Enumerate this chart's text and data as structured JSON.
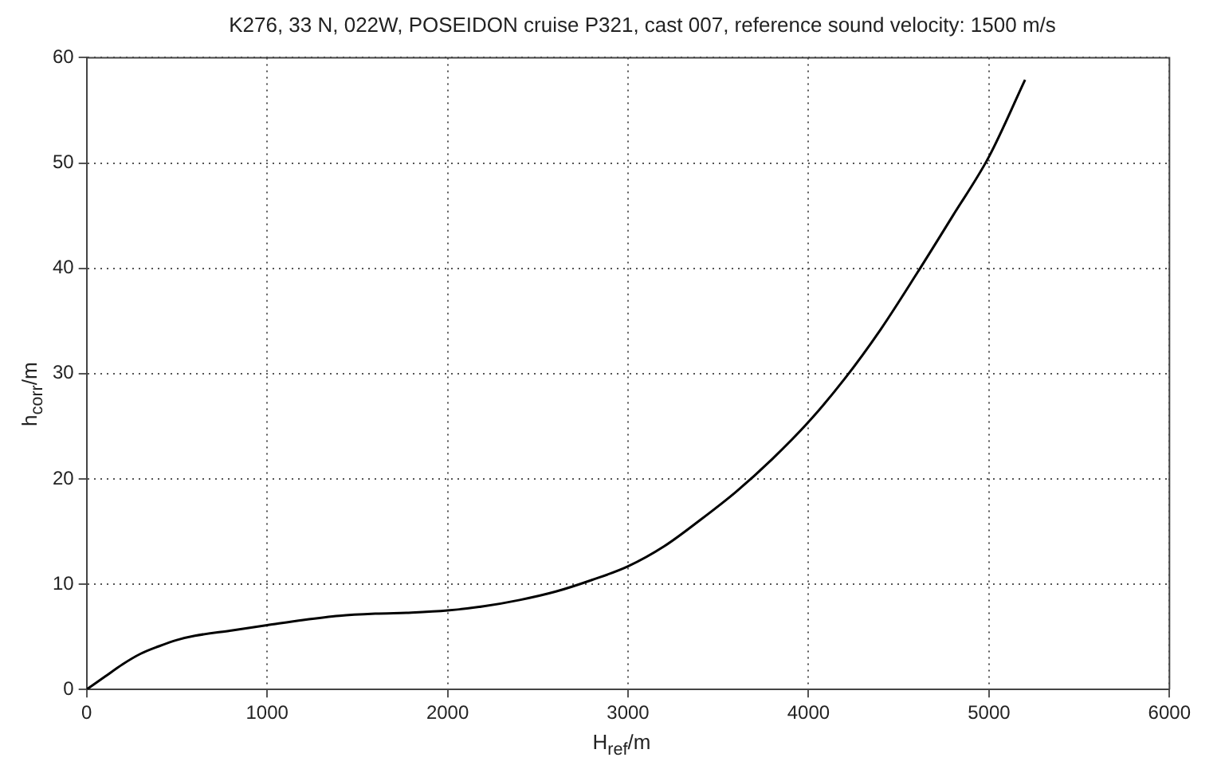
{
  "chart_data": {
    "type": "line",
    "title": "K276, 33 N, 022W, POSEIDON cruise P321, cast 007, reference sound velocity: 1500 m/s",
    "xlabel": "H$_{ref}$/m",
    "ylabel": "h$_{corr}$/m",
    "x": [
      0,
      100,
      200,
      300,
      400,
      500,
      600,
      800,
      1000,
      1200,
      1400,
      1600,
      1800,
      2000,
      2200,
      2400,
      2600,
      2800,
      3000,
      3200,
      3400,
      3600,
      3800,
      4000,
      4200,
      4400,
      4600,
      4800,
      5000,
      5200
    ],
    "series": [
      {
        "color": "#000000",
        "values": [
          0,
          1.2,
          2.4,
          3.4,
          4.1,
          4.7,
          5.1,
          5.6,
          6.1,
          6.6,
          7.0,
          7.2,
          7.3,
          7.5,
          7.9,
          8.5,
          9.3,
          10.4,
          11.7,
          13.6,
          16.1,
          18.8,
          21.9,
          25.4,
          29.5,
          34.2,
          39.5,
          45,
          50.6,
          57.9
        ]
      }
    ],
    "xlim": [
      0,
      6000
    ],
    "ylim": [
      0,
      60
    ],
    "xticks": [
      0,
      1000,
      2000,
      3000,
      4000,
      5000,
      6000
    ],
    "yticks": [
      0,
      10,
      20,
      30,
      40,
      50,
      60
    ],
    "grid": true,
    "line_style": "solid",
    "marker": "none"
  }
}
